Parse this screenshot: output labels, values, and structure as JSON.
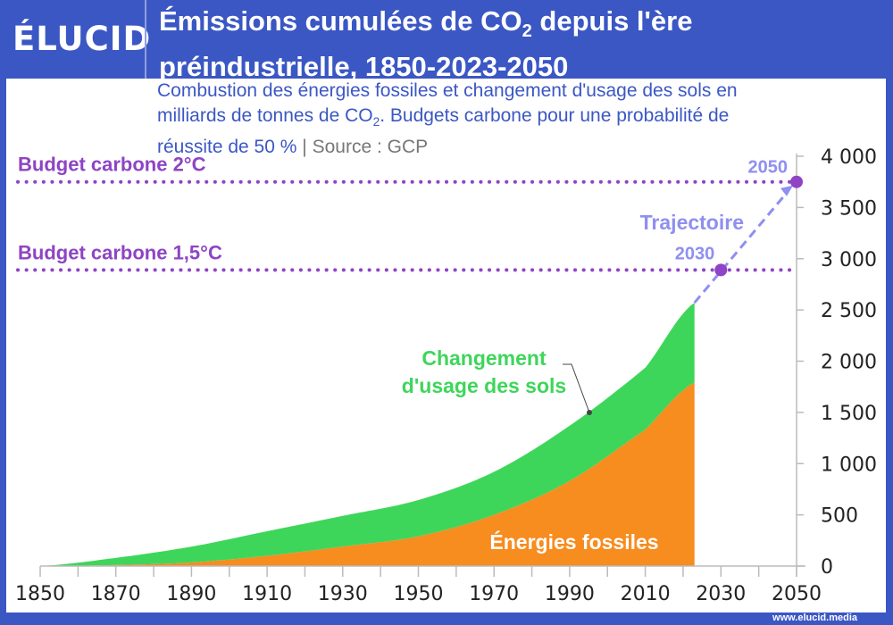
{
  "header": {
    "logo": "ÉLUCID",
    "title_line1_pre": "Émissions cumulées de CO",
    "title_line1_sub": "2",
    "title_line1_post": " depuis l'ère",
    "title_line2": "préindustrielle, 1850-2023-2050",
    "subtitle_line1": "Combustion des énergies fossiles et changement d'usage des sols en",
    "subtitle_line2_pre": "milliards de tonnes de CO",
    "subtitle_line2_sub": "2",
    "subtitle_line2_post": ". Budgets carbone pour une probabilité de",
    "subtitle_line3": "réussite de 50 %",
    "subtitle_separator": "|",
    "source": "Source : GCP"
  },
  "footer": {
    "url": "www.elucid.media"
  },
  "chart_data": {
    "type": "area",
    "stacked": true,
    "x": [
      1850,
      1870,
      1890,
      1910,
      1930,
      1950,
      1970,
      1990,
      2010,
      2023
    ],
    "series": [
      {
        "name": "Énergies fossiles",
        "color": "#f78c1f",
        "values": [
          0,
          10,
          35,
          100,
          190,
          290,
          500,
          830,
          1330,
          1790
        ]
      },
      {
        "name": "Changement d'usage des sols",
        "color": "#3ed65a",
        "values": [
          0,
          70,
          155,
          240,
          300,
          355,
          420,
          540,
          605,
          780
        ]
      }
    ],
    "xlim": [
      1850,
      2050
    ],
    "ylim": [
      0,
      4000
    ],
    "x_ticks": [
      "1850",
      "1870",
      "1890",
      "1910",
      "1930",
      "1950",
      "1970",
      "1990",
      "2010",
      "2030",
      "2050"
    ],
    "y_ticks": [
      "0",
      "500",
      "1 000",
      "1 500",
      "2 000",
      "2 500",
      "3 000",
      "3 500",
      "4 000"
    ],
    "y_tick_values": [
      0,
      500,
      1000,
      1500,
      2000,
      2500,
      3000,
      3500,
      4000
    ],
    "x_tick_values": [
      1850,
      1870,
      1890,
      1910,
      1930,
      1950,
      1970,
      1990,
      2010,
      2030,
      2050
    ],
    "grid": false,
    "reference_lines": [
      {
        "label": "Budget carbone 2°C",
        "value": 3750,
        "color": "#8e44c4"
      },
      {
        "label": "Budget carbone 1,5°C",
        "value": 2890,
        "color": "#8e44c4"
      }
    ],
    "trajectory": {
      "label": "Trajectoire",
      "color": "#8f8ff0",
      "points": [
        {
          "x": 2023,
          "y": 2570
        },
        {
          "x": 2030,
          "y": 2890,
          "label": "2030"
        },
        {
          "x": 2050,
          "y": 3750,
          "label": "2050"
        }
      ]
    },
    "annotations": [
      {
        "text_line1": "Changement",
        "text_line2": "d'usage des sols",
        "color": "#3ed65a"
      },
      {
        "text": "Énergies fossiles",
        "color": "#f78c1f"
      }
    ]
  }
}
